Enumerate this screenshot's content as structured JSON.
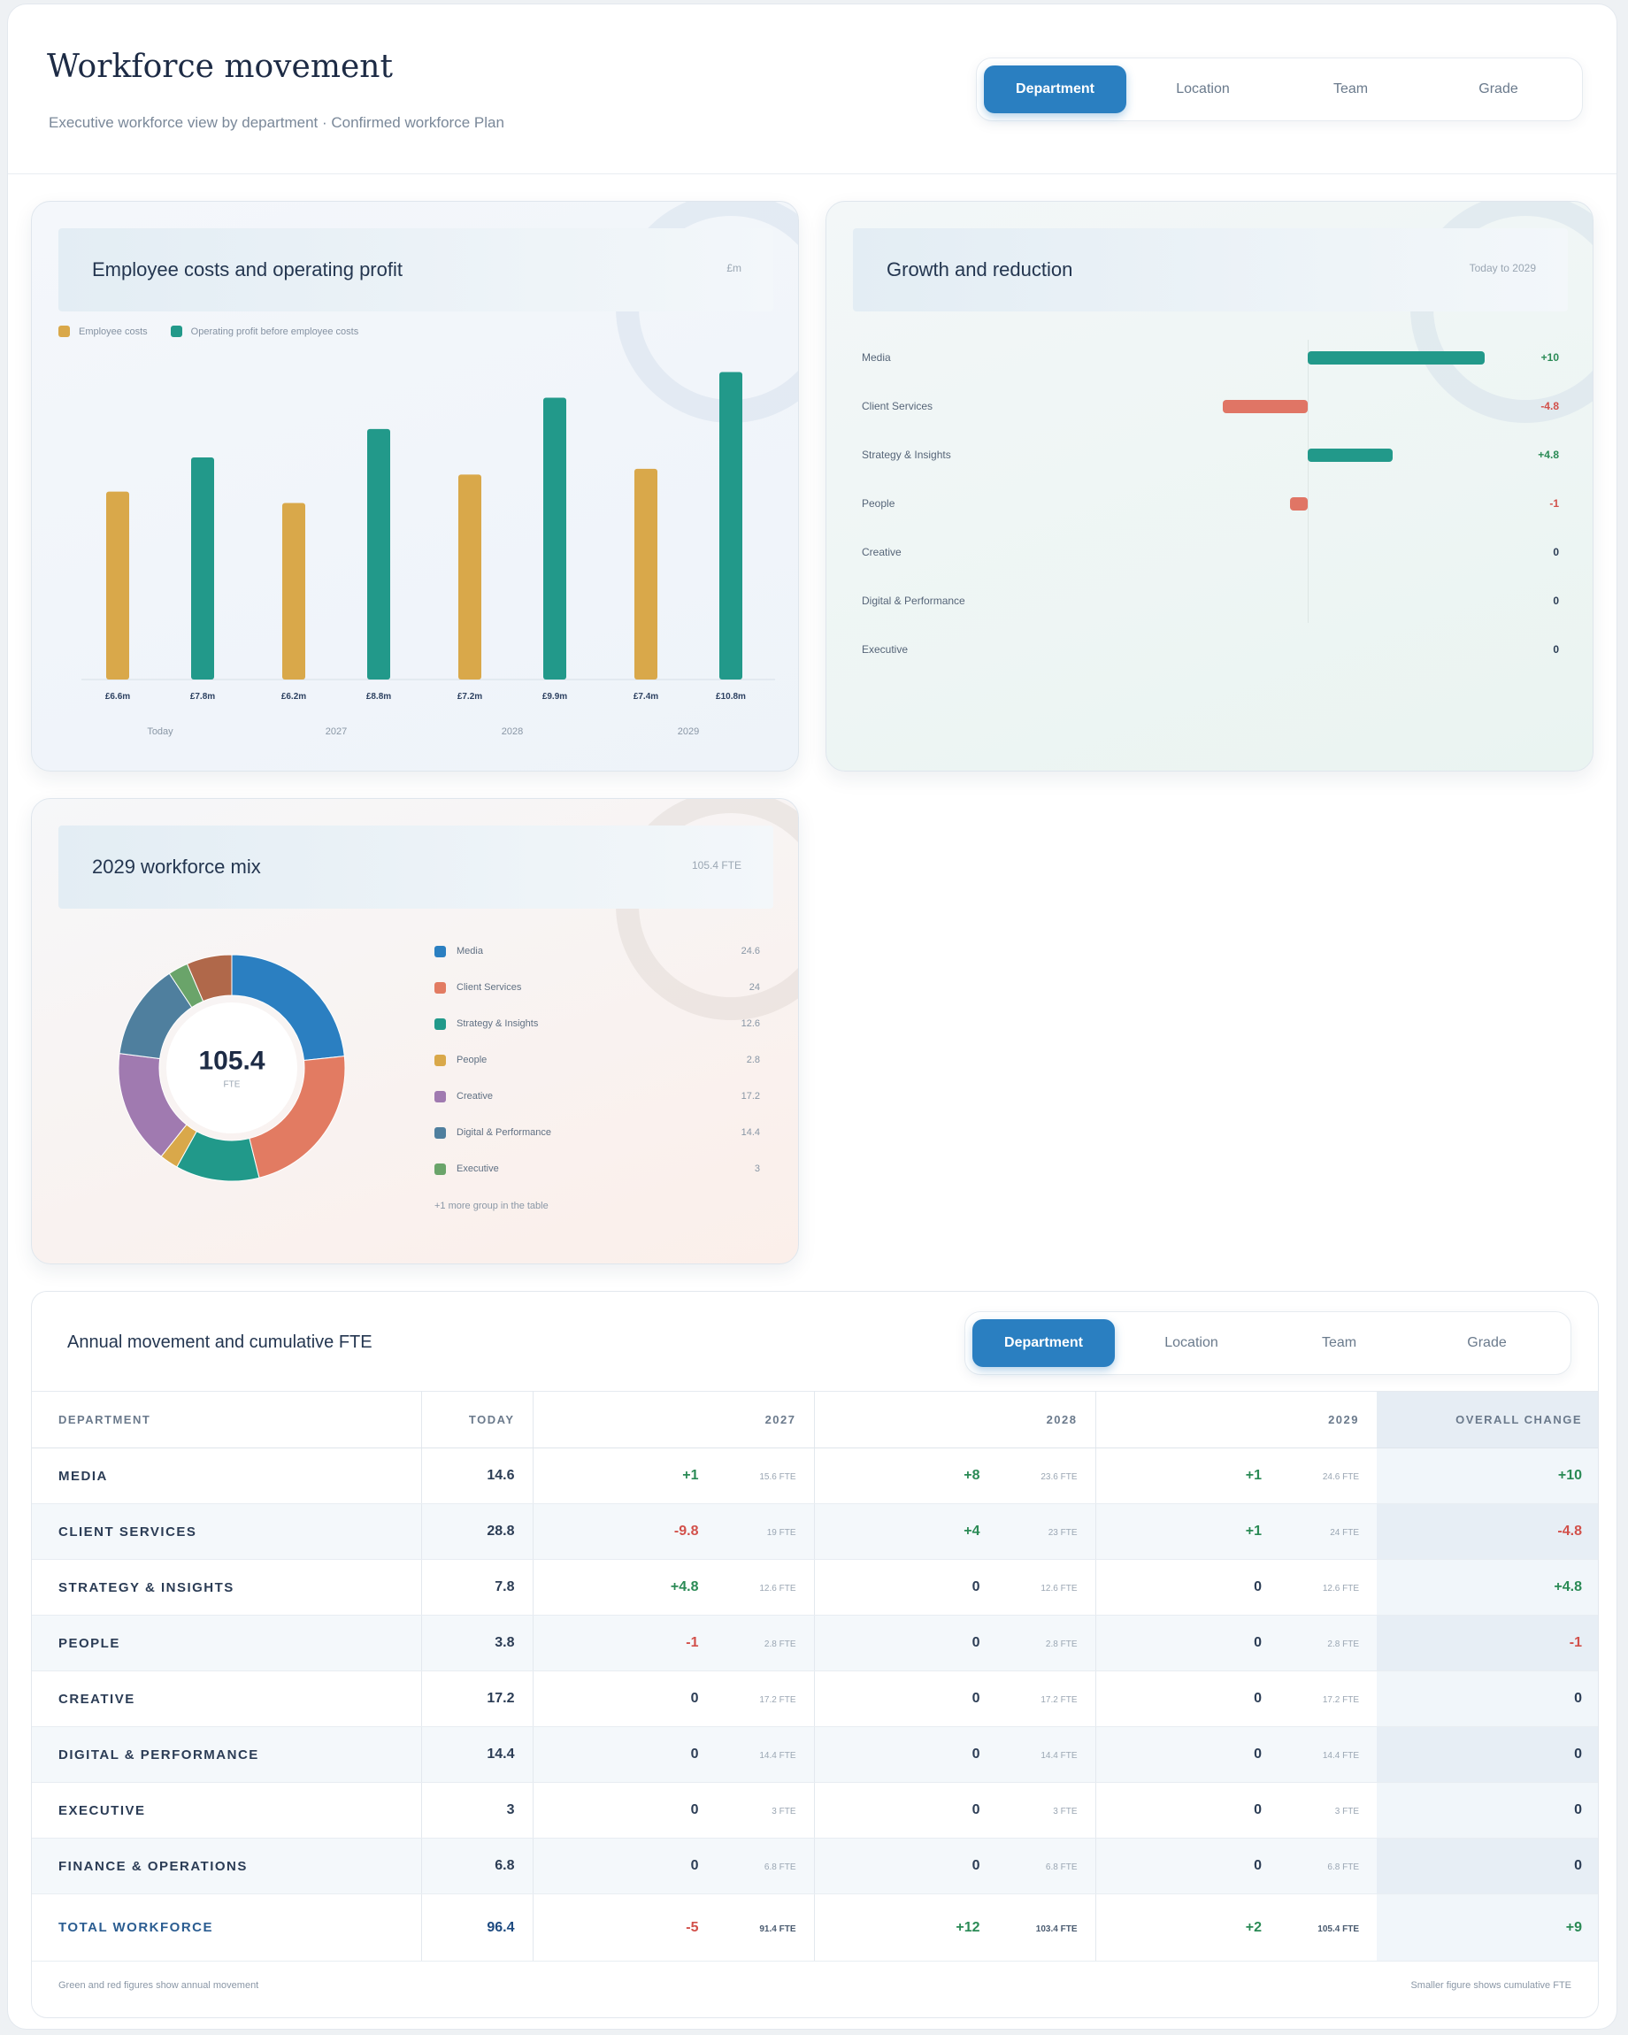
{
  "header": {
    "title": "Workforce movement",
    "subtitle": "Executive workforce view by department · Confirmed workforce Plan",
    "tabs": [
      {
        "label": "Department",
        "active": true
      },
      {
        "label": "Location",
        "active": false
      },
      {
        "label": "Team",
        "active": false
      },
      {
        "label": "Grade",
        "active": false
      }
    ]
  },
  "costs_card": {
    "title": "Employee costs and operating profit",
    "meta": "£m",
    "legend": [
      {
        "label": "Employee costs",
        "color": "#d9a84a"
      },
      {
        "label": "Operating profit before employee costs",
        "color": "#22998a"
      }
    ]
  },
  "growth_card": {
    "title": "Growth and reduction",
    "meta": "Today to 2029",
    "pos_color": "#22998a",
    "neg_color": "#e07565"
  },
  "mix_card": {
    "title": "2029 workforce mix",
    "meta": "105.4 FTE",
    "total": "105.4",
    "unit": "FTE",
    "more_note": "+1 more group in the table"
  },
  "table": {
    "title": "Annual movement and cumulative FTE",
    "tabs": [
      {
        "label": "Department",
        "active": true
      },
      {
        "label": "Location",
        "active": false
      },
      {
        "label": "Team",
        "active": false
      },
      {
        "label": "Grade",
        "active": false
      }
    ],
    "headers": [
      "DEPARTMENT",
      "TODAY",
      "2027",
      "2028",
      "2029",
      "OVERALL CHANGE"
    ],
    "rows": [
      {
        "dept": "MEDIA",
        "today": "14.6",
        "y2027": "+1",
        "c2027": "15.6 FTE",
        "y2028": "+8",
        "c2028": "23.6 FTE",
        "y2029": "+1",
        "c2029": "24.6 FTE",
        "overall": "+10"
      },
      {
        "dept": "CLIENT SERVICES",
        "today": "28.8",
        "y2027": "-9.8",
        "c2027": "19 FTE",
        "y2028": "+4",
        "c2028": "23 FTE",
        "y2029": "+1",
        "c2029": "24 FTE",
        "overall": "-4.8"
      },
      {
        "dept": "STRATEGY & INSIGHTS",
        "today": "7.8",
        "y2027": "+4.8",
        "c2027": "12.6 FTE",
        "y2028": "0",
        "c2028": "12.6 FTE",
        "y2029": "0",
        "c2029": "12.6 FTE",
        "overall": "+4.8"
      },
      {
        "dept": "PEOPLE",
        "today": "3.8",
        "y2027": "-1",
        "c2027": "2.8 FTE",
        "y2028": "0",
        "c2028": "2.8 FTE",
        "y2029": "0",
        "c2029": "2.8 FTE",
        "overall": "-1"
      },
      {
        "dept": "CREATIVE",
        "today": "17.2",
        "y2027": "0",
        "c2027": "17.2 FTE",
        "y2028": "0",
        "c2028": "17.2 FTE",
        "y2029": "0",
        "c2029": "17.2 FTE",
        "overall": "0"
      },
      {
        "dept": "DIGITAL & PERFORMANCE",
        "today": "14.4",
        "y2027": "0",
        "c2027": "14.4 FTE",
        "y2028": "0",
        "c2028": "14.4 FTE",
        "y2029": "0",
        "c2029": "14.4 FTE",
        "overall": "0"
      },
      {
        "dept": "EXECUTIVE",
        "today": "3",
        "y2027": "0",
        "c2027": "3 FTE",
        "y2028": "0",
        "c2028": "3 FTE",
        "y2029": "0",
        "c2029": "3 FTE",
        "overall": "0"
      },
      {
        "dept": "FINANCE & OPERATIONS",
        "today": "6.8",
        "y2027": "0",
        "c2027": "6.8 FTE",
        "y2028": "0",
        "c2028": "6.8 FTE",
        "y2029": "0",
        "c2029": "6.8 FTE",
        "overall": "0"
      }
    ],
    "total": {
      "dept": "TOTAL WORKFORCE",
      "today": "96.4",
      "y2027": "-5",
      "c2027": "91.4 FTE",
      "y2028": "+12",
      "c2028": "103.4 FTE",
      "y2029": "+2",
      "c2029": "105.4 FTE",
      "overall": "+9"
    },
    "foot_left": "Green and red figures show annual movement",
    "foot_right": "Smaller figure shows cumulative FTE"
  },
  "chart_data": [
    {
      "type": "bar",
      "title": "Employee costs and operating profit",
      "categories": [
        "Today",
        "2027",
        "2028",
        "2029"
      ],
      "series": [
        {
          "name": "Employee costs",
          "values": [
            6.6,
            6.2,
            7.2,
            7.4
          ],
          "labels": [
            "£6.6m",
            "£6.2m",
            "£7.2m",
            "£7.4m"
          ]
        },
        {
          "name": "Operating profit before employee costs",
          "values": [
            7.8,
            8.8,
            9.9,
            10.8
          ],
          "labels": [
            "£7.8m",
            "£8.8m",
            "£9.9m",
            "£10.8m"
          ]
        }
      ],
      "ylim": [
        0,
        11.5
      ]
    },
    {
      "type": "bar",
      "orientation": "horizontal",
      "title": "Growth and reduction",
      "categories": [
        "Media",
        "Client Services",
        "Strategy & Insights",
        "People",
        "Creative",
        "Digital & Performance",
        "Executive"
      ],
      "values": [
        10,
        -4.8,
        4.8,
        -1,
        0,
        0,
        0
      ],
      "labels": [
        "+10",
        "-4.8",
        "+4.8",
        "-1",
        "0",
        "0",
        "0"
      ],
      "xlim": [
        -10,
        10
      ]
    },
    {
      "type": "pie",
      "title": "2029 workforce mix",
      "categories": [
        "Media",
        "Client Services",
        "Strategy & Insights",
        "People",
        "Creative",
        "Digital & Performance",
        "Executive",
        "Finance & Operations"
      ],
      "values": [
        24.6,
        24,
        12.6,
        2.8,
        17.2,
        14.4,
        3,
        6.8
      ],
      "labels": [
        "24.6",
        "24",
        "12.6",
        "2.8",
        "17.2",
        "14.4",
        "3",
        ""
      ],
      "colors": [
        "#2b7fc1",
        "#e27b62",
        "#21998a",
        "#d9a84a",
        "#a07ab0",
        "#4f7f9e",
        "#6aa46a",
        "#b0684a"
      ],
      "legend_count": 7
    }
  ]
}
